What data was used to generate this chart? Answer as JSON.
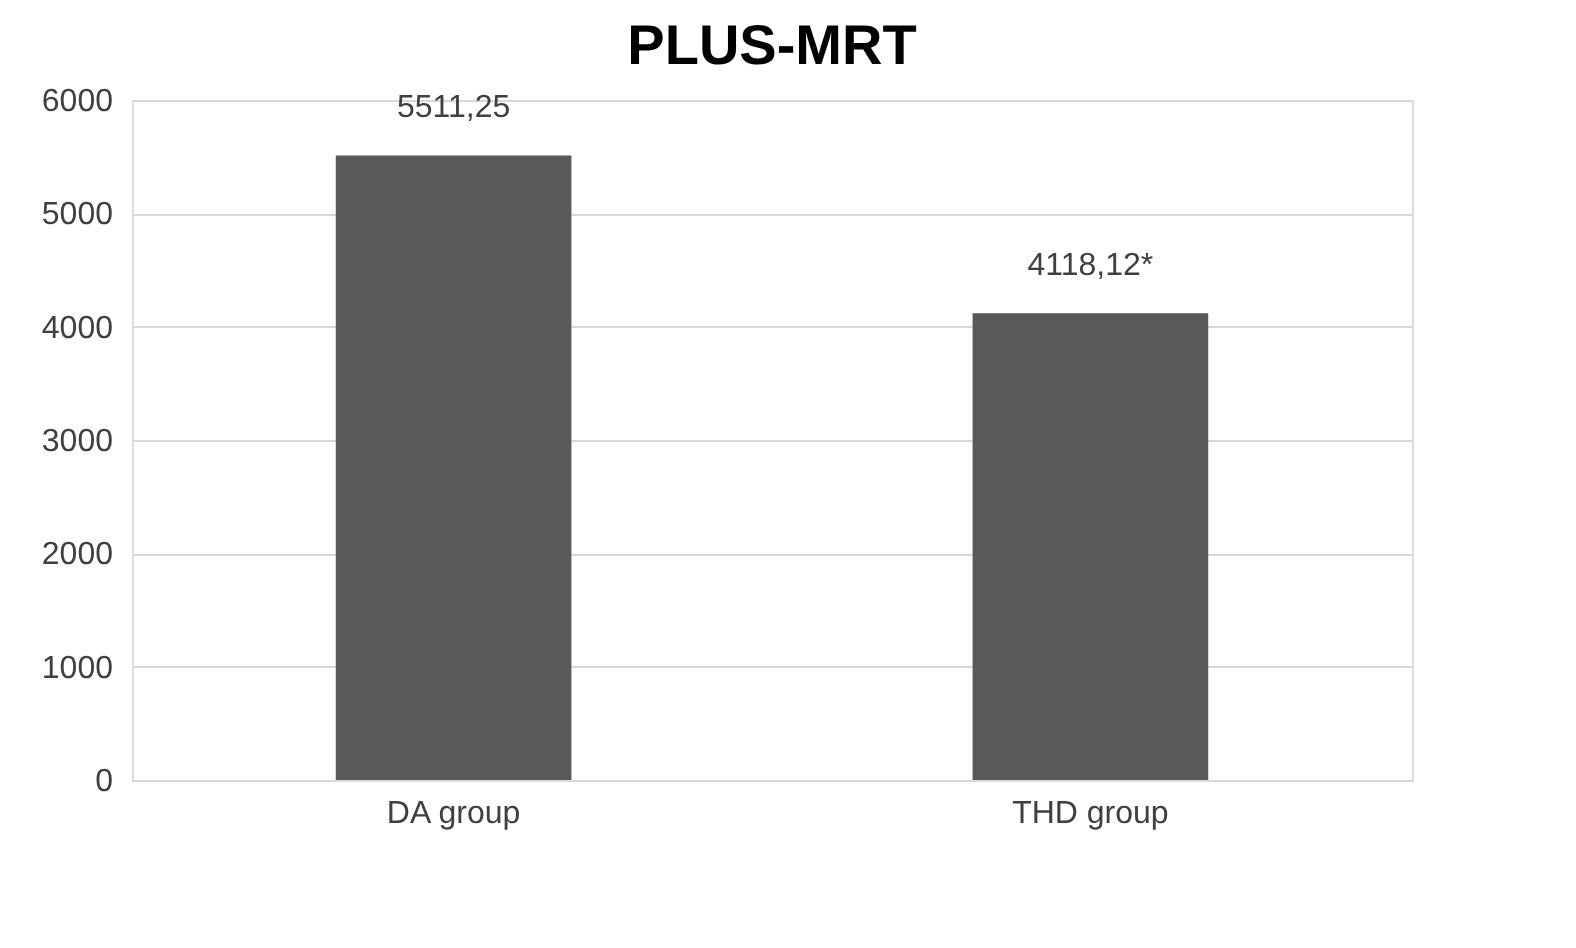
{
  "chart_data": {
    "type": "bar",
    "title": "PLUS-MRT",
    "categories": [
      "DA group",
      "THD group"
    ],
    "values": [
      5511.25,
      4118.12
    ],
    "value_labels": [
      "5511,25",
      "4118,12*"
    ],
    "color": "#595959",
    "ylim": [
      0,
      6000
    ],
    "yticks": [
      0,
      1000,
      2000,
      3000,
      4000,
      5000,
      6000
    ],
    "grid": "y"
  }
}
